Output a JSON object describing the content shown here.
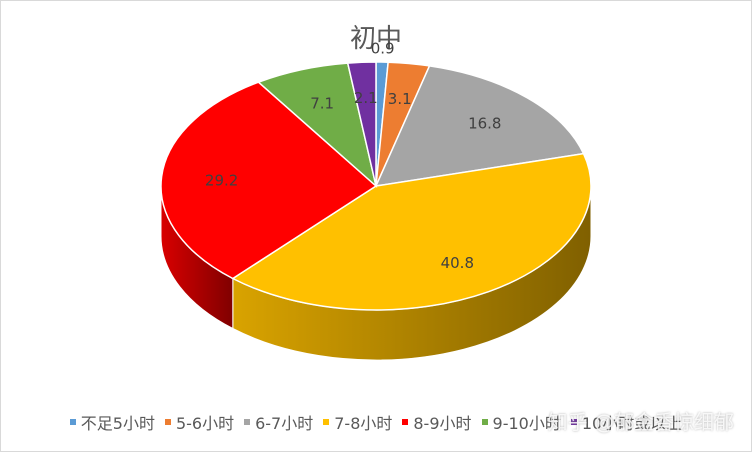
{
  "chart_data": {
    "type": "pie",
    "title": "初中",
    "categories": [
      "不足5小时",
      "5-6小时",
      "6-7小时",
      "7-8小时",
      "8-9小时",
      "9-10小时",
      "10小时或以上"
    ],
    "values": [
      0.9,
      3.1,
      16.8,
      40.8,
      29.2,
      7.1,
      2.1
    ],
    "value_labels": [
      "0.9",
      "3.1",
      "16.8",
      "40.8",
      "29.2",
      "7.1",
      "2.1"
    ],
    "colors": [
      "#5b9bd5",
      "#ed7d31",
      "#a5a5a5",
      "#ffc000",
      "#ff0000",
      "#70ad47",
      "#7030a0"
    ],
    "legend_position": "bottom",
    "style": "3d"
  },
  "legend_labels": [
    "不足5小时",
    "5-6小时",
    "6-7小时",
    "7-8小时",
    "8-9小时",
    "9-10小时",
    "10小时或以上"
  ],
  "watermark": "知乎 @郁金香惊细郁"
}
